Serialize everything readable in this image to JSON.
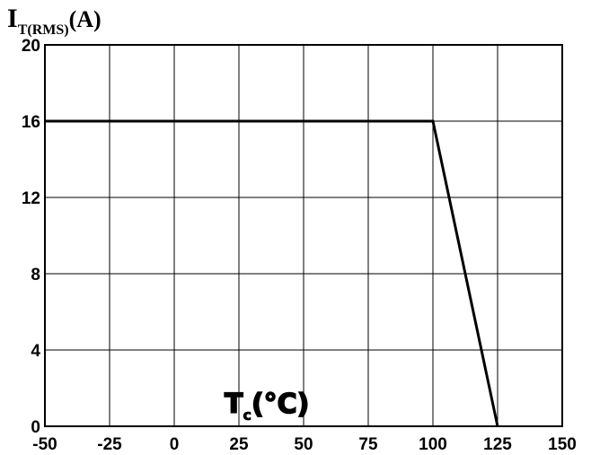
{
  "chart_data": {
    "type": "line",
    "title": "",
    "ylabel": {
      "main": "I",
      "sub": "T(RMS)",
      "unit": "(A)"
    },
    "xlabel": {
      "main": "T",
      "sub": "c",
      "unit": "(°C)"
    },
    "xlim": [
      -50,
      150
    ],
    "ylim": [
      0,
      20
    ],
    "x_ticks": [
      -50,
      -25,
      0,
      25,
      50,
      75,
      100,
      125,
      150
    ],
    "y_ticks": [
      0,
      4,
      8,
      12,
      16,
      20
    ],
    "grid": true,
    "series": [
      {
        "x": [
          -50,
          100,
          125
        ],
        "y": [
          16,
          16,
          0
        ]
      }
    ],
    "colors": {
      "line": "#000000",
      "grid": "#000000",
      "axes": "#000000"
    }
  }
}
